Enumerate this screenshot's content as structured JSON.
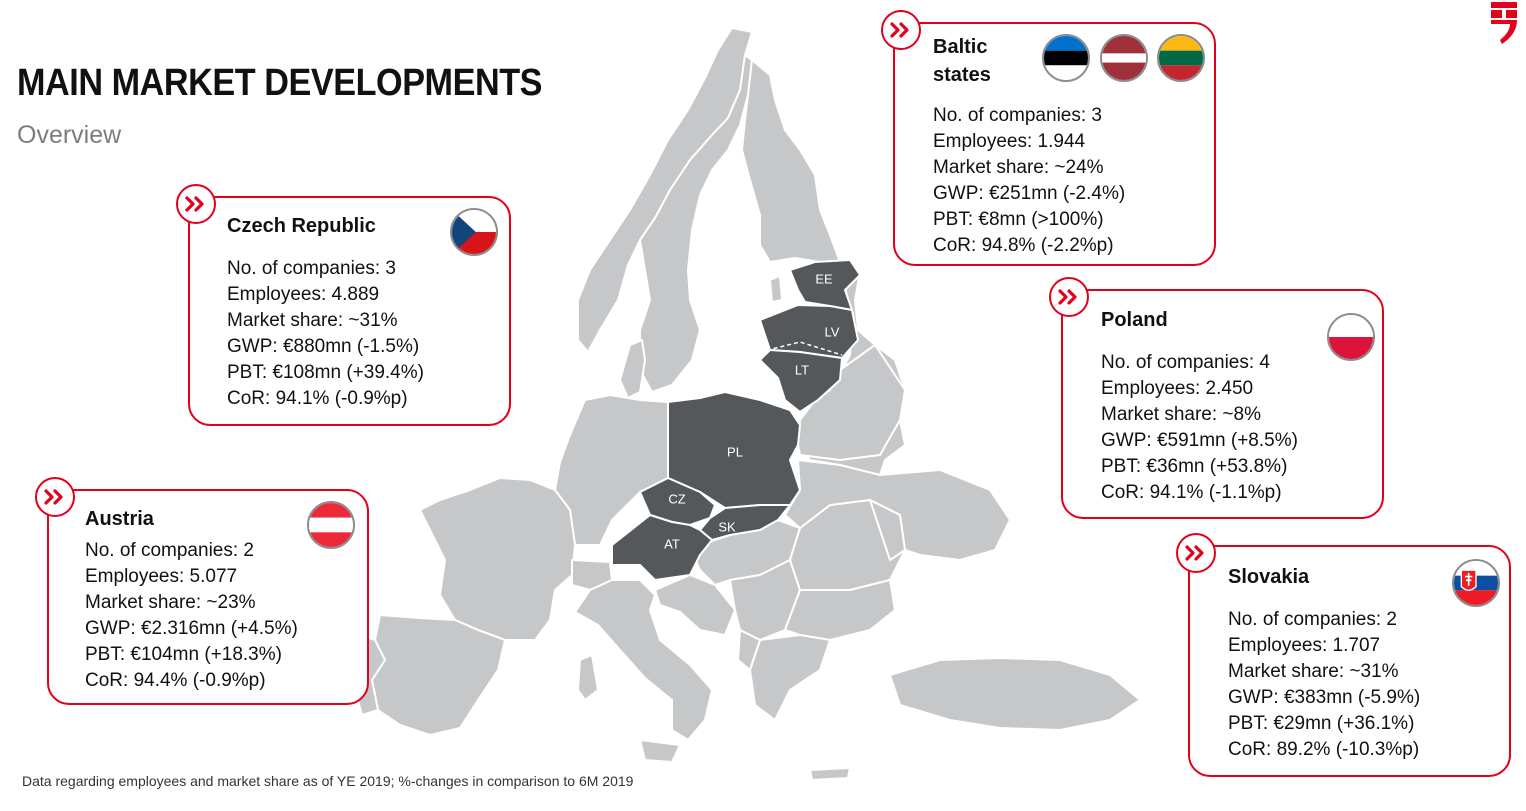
{
  "header": {
    "title": "MAIN MARKET DEVELOPMENTS",
    "subtitle": "Overview"
  },
  "colors": {
    "accent": "#e3001b",
    "map_land": "#c6c7c9",
    "map_highlight": "#55585b"
  },
  "map": {
    "labels": [
      "EE",
      "LV",
      "LT",
      "PL",
      "CZ",
      "SK",
      "AT"
    ]
  },
  "markets": [
    {
      "name": "Czech Republic",
      "flag": "czech-flag-icon",
      "stats": [
        "No. of companies: 3",
        "Employees: 4.889",
        "Market share: ~31%",
        "GWP: €880mn (-1.5%)",
        "PBT: €108mn (+39.4%)",
        "CoR: 94.1% (-0.9%p)"
      ]
    },
    {
      "name": "Austria",
      "flag": "austria-flag-icon",
      "stats": [
        "No. of companies: 2",
        "Employees: 5.077",
        "Market share: ~23%",
        "GWP: €2.316mn (+4.5%)",
        "PBT: €104mn (+18.3%)",
        "CoR: 94.4% (-0.9%p)"
      ]
    },
    {
      "name": "Baltic states",
      "flag": "baltic-flags-icons",
      "stats": [
        "No. of companies: 3",
        "Employees: 1.944",
        "Market share: ~24%",
        "GWP: €251mn (-2.4%)",
        "PBT: €8mn (>100%)",
        "CoR: 94.8% (-2.2%p)"
      ]
    },
    {
      "name": "Poland",
      "flag": "poland-flag-icon",
      "stats": [
        "No. of companies: 4",
        "Employees: 2.450",
        "Market share: ~8%",
        "GWP: €591mn (+8.5%)",
        "PBT: €36mn (+53.8%)",
        "CoR: 94.1% (-1.1%p)"
      ]
    },
    {
      "name": "Slovakia",
      "flag": "slovakia-flag-icon",
      "stats": [
        "No. of companies: 2",
        "Employees: 1.707",
        "Market share: ~31%",
        "GWP: €383mn (-5.9%)",
        "PBT: €29mn (+36.1%)",
        "CoR: 89.2% (-10.3%p)"
      ]
    }
  ],
  "footnote": "Data regarding employees and market share as of YE 2019; %-changes in comparison to 6M 2019"
}
